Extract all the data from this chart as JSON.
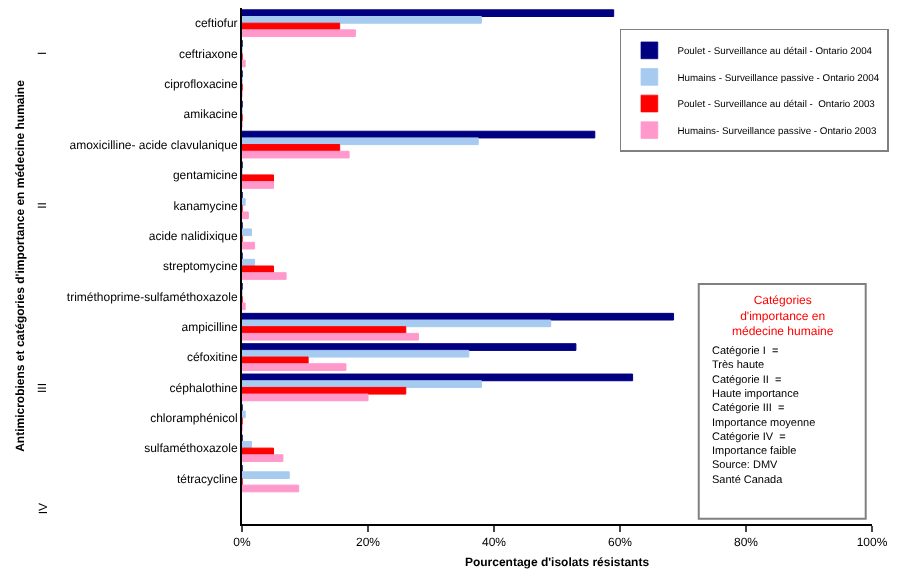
{
  "chart_data": {
    "type": "bar",
    "orientation": "horizontal",
    "xlabel": "Pourcentage d'isolats résistants",
    "ylabel": "Antimicrobiens et catégories d'importance en médecine humaine",
    "categories": [
      "ceftiofur",
      "ceftriaxone",
      "ciprofloxacine",
      "amikacine",
      "amoxicilline- acide clavulanique",
      "gentamicine",
      "kanamycine",
      "acide nalidixique",
      "streptomycine",
      "triméthoprime-sulfaméthoxazole",
      "ampicilline",
      "céfoxitine",
      "céphalothine",
      "chloramphénicol",
      "sulfaméthoxazole",
      "tétracycline",
      null
    ],
    "series": [
      {
        "name": "Poulet - Surveillance au détail - Ontario 2004",
        "color": "#000080",
        "values": [
          59,
          0,
          0,
          0,
          56,
          0,
          0,
          0,
          0,
          0,
          68.5,
          53,
          62,
          0,
          0,
          0,
          null
        ]
      },
      {
        "name": "Humains - Surveillance passive - Ontario 2004",
        "color": "#a6caf0",
        "values": [
          38,
          0,
          0,
          0,
          37.5,
          0,
          0.5,
          1.5,
          2,
          0,
          49,
          36,
          38,
          0.5,
          1.5,
          7.5,
          null
        ]
      },
      {
        "name": "Poulet - Surveillance au détail -  Ontario 2003",
        "color": "#ff0000",
        "values": [
          15.5,
          0,
          0,
          0,
          15.5,
          5,
          0,
          0,
          5,
          0,
          26,
          10.5,
          26,
          0,
          5,
          0,
          null
        ]
      },
      {
        "name": "Humains- Surveillance passive - Ontario 2003",
        "color": "#ff99cc",
        "values": [
          18,
          0.5,
          0,
          0,
          17,
          5,
          1,
          2,
          7,
          0.5,
          28,
          16.5,
          20,
          0,
          6.5,
          9,
          null
        ]
      }
    ],
    "xlim": [
      0,
      100
    ],
    "xticks": [
      {
        "value": 0,
        "label": "0%"
      },
      {
        "value": 20,
        "label": "20%"
      },
      {
        "value": 40,
        "label": "40%"
      },
      {
        "value": 60,
        "label": "60%"
      },
      {
        "value": 80,
        "label": "80%"
      },
      {
        "value": 100,
        "label": "100%"
      }
    ],
    "legend": "top right",
    "annotations": [
      "Catégories\nd'importance en\nmédecine humaine",
      "Catégorie I  =\nTrès haute\nCatégorie II  =\nHaute importance\nCatégorie III  =\nImportance moyenne\nCatégorie IV  =\nImportance faible\nSource: DMV\nSanté Canada",
      "I",
      "II",
      "III",
      "IV"
    ]
  }
}
